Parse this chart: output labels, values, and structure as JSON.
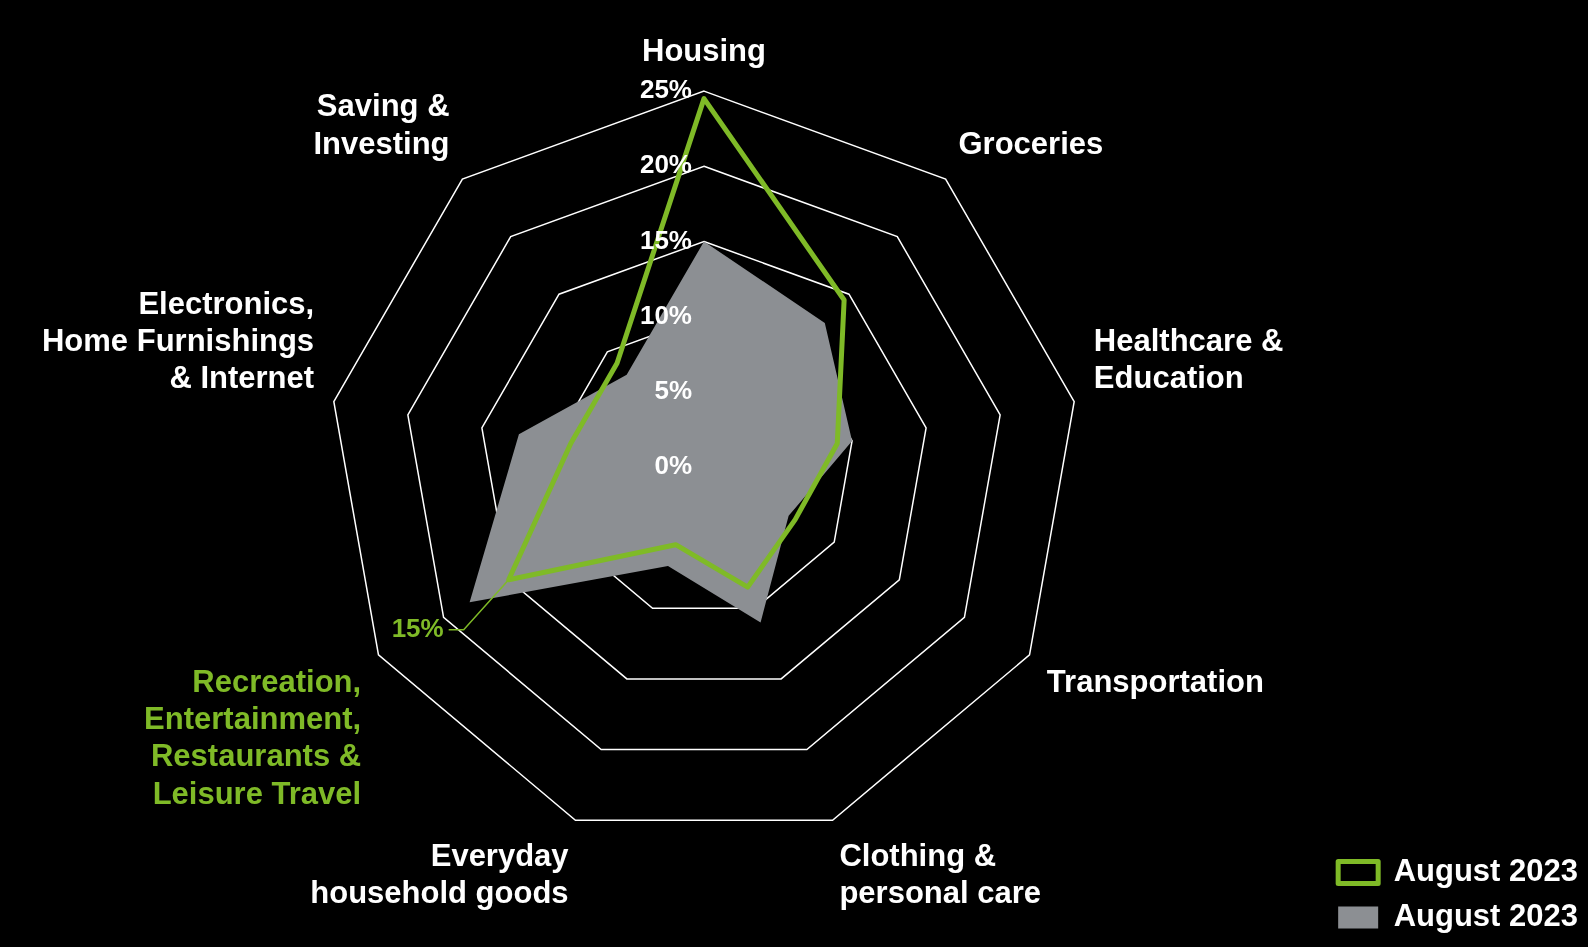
{
  "chart_data": {
    "type": "radar",
    "categories": [
      "Housing",
      "Groceries",
      "Healthcare & Education",
      "Transportation",
      "Clothing & personal care",
      "Everyday household goods",
      "Recreation, Entertainment, Restaurants & Leisure Travel",
      "Electronics, Home Furnishings & Internet",
      "Saving & Investing"
    ],
    "series": [
      {
        "name": "August 2023",
        "color": "#7fba27",
        "values": [
          24.5,
          14.5,
          9,
          7,
          8.5,
          5.5,
          15,
          9,
          9
        ],
        "value_labels": [
          null,
          null,
          null,
          null,
          null,
          null,
          "15%",
          null,
          null
        ]
      },
      {
        "name": "August 2023",
        "color": "#8c8f93",
        "values": [
          15,
          12.5,
          10,
          6.5,
          11,
          7,
          18,
          12.5,
          8
        ]
      }
    ],
    "ylim": [
      0,
      25
    ],
    "yticks": [
      {
        "value": 0,
        "label": "0%"
      },
      {
        "value": 5,
        "label": "5%"
      },
      {
        "value": 10,
        "label": "10%"
      },
      {
        "value": 15,
        "label": "15%"
      },
      {
        "value": 20,
        "label": "20%"
      },
      {
        "value": 25,
        "label": "25%"
      }
    ],
    "legend": "bottom right",
    "grid": true
  }
}
